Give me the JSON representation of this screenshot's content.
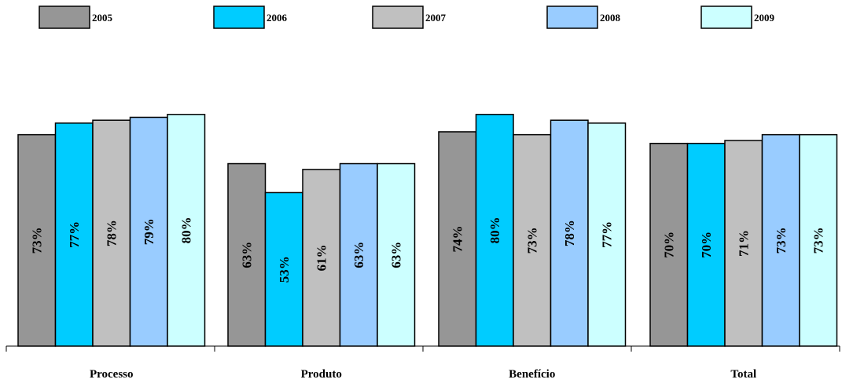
{
  "chart_data": {
    "type": "bar",
    "categories": [
      "Processo",
      "Produto",
      "Benefício",
      "Total"
    ],
    "series": [
      {
        "name": "2005",
        "color": "#969696",
        "values": [
          73,
          63,
          74,
          70
        ],
        "labels": [
          "73%",
          "63%",
          "74%",
          "70%"
        ]
      },
      {
        "name": "2006",
        "color": "#00ccff",
        "values": [
          77,
          53,
          80,
          70
        ],
        "labels": [
          "77%",
          "53%",
          "80%",
          "70%"
        ]
      },
      {
        "name": "2007",
        "color": "#c0c0c0",
        "values": [
          78,
          61,
          73,
          71
        ],
        "labels": [
          "78%",
          "61%",
          "73%",
          "71%"
        ]
      },
      {
        "name": "2008",
        "color": "#99ccff",
        "values": [
          79,
          63,
          78,
          73
        ],
        "labels": [
          "79%",
          "63%",
          "78%",
          "73%"
        ]
      },
      {
        "name": "2009",
        "color": "#ccffff",
        "values": [
          80,
          63,
          77,
          73
        ],
        "labels": [
          "80%",
          "63%",
          "77%",
          "73%"
        ]
      }
    ],
    "legend_position": "top",
    "grid": false,
    "ylim": [
      0,
      80
    ],
    "data_labels": "inside-vertical"
  }
}
